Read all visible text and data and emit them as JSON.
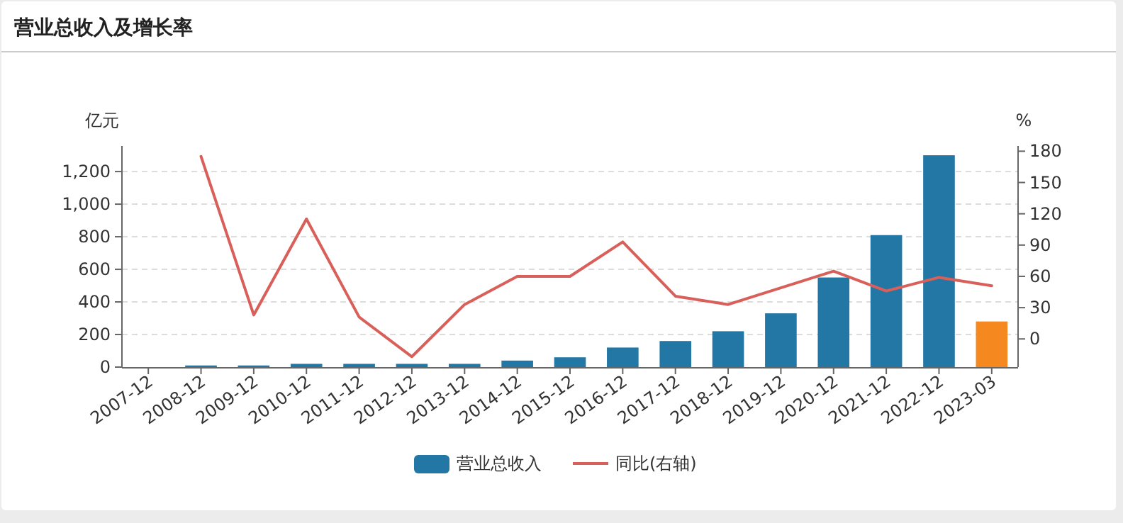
{
  "chart_data": {
    "type": "bar",
    "title": "营业总收入及增长率",
    "ylabel": "亿元",
    "y2label": "%",
    "categories": [
      "2007-12",
      "2008-12",
      "2009-12",
      "2010-12",
      "2011-12",
      "2012-12",
      "2013-12",
      "2014-12",
      "2015-12",
      "2016-12",
      "2017-12",
      "2018-12",
      "2019-12",
      "2020-12",
      "2021-12",
      "2022-12",
      "2023-03"
    ],
    "series": [
      {
        "name": "营业总收入",
        "color": "#2377a4",
        "colors": [
          "#2377a4",
          "#2377a4",
          "#2377a4",
          "#2377a4",
          "#2377a4",
          "#2377a4",
          "#2377a4",
          "#2377a4",
          "#2377a4",
          "#2377a4",
          "#2377a4",
          "#2377a4",
          "#2377a4",
          "#2377a4",
          "#2377a4",
          "#2377a4",
          "#f5891f"
        ],
        "values": [
          0,
          10,
          10,
          20,
          20,
          20,
          20,
          40,
          60,
          120,
          160,
          220,
          330,
          550,
          810,
          1300,
          280
        ]
      },
      {
        "name": "同比(右轴)",
        "type": "line",
        "axis": "y2",
        "color": "#d9605a",
        "values": [
          null,
          175,
          23,
          115,
          21,
          -17,
          33,
          60,
          60,
          93,
          41,
          33,
          49,
          65,
          46,
          59,
          51
        ]
      }
    ],
    "ylim": [
      0,
      1357
    ],
    "yticks": [
      0,
      200,
      400,
      600,
      800,
      {
        "value": 1000,
        "label": "1,000"
      },
      {
        "value": 1200,
        "label": "1,200"
      }
    ],
    "y2lim": [
      -27,
      185
    ],
    "y2ticks": [
      0,
      30,
      60,
      90,
      120,
      150,
      180
    ],
    "grid": "y",
    "legend": "bottom",
    "marker": "none",
    "line_style": "solid"
  }
}
